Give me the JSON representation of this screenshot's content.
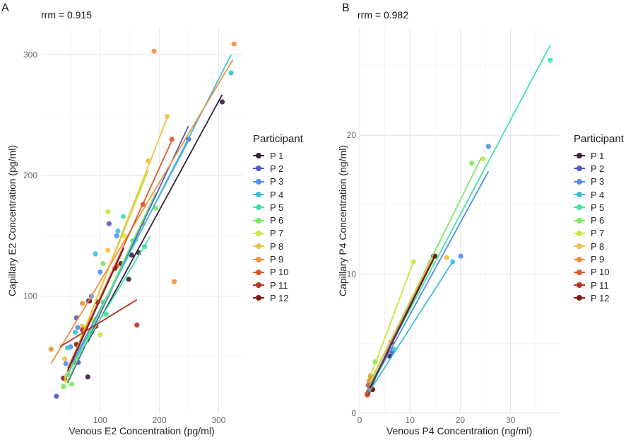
{
  "colors": [
    "#3b1f3f",
    "#5558c8",
    "#4f8ef0",
    "#3cc0dc",
    "#3de5a0",
    "#7be860",
    "#c5e83c",
    "#f0c040",
    "#f0903c",
    "#e0582a",
    "#b8341e",
    "#7a1a18"
  ],
  "legend": {
    "title": "Participant",
    "items": [
      "P 1",
      "P 2",
      "P 3",
      "P 4",
      "P 5",
      "P 6",
      "P 7",
      "P 8",
      "P 9",
      "P 10",
      "P 11",
      "P 12"
    ]
  },
  "chart_data": [
    {
      "type": "scatter",
      "panel": "A",
      "annotation": "rrm = 0.915",
      "xlabel": "Venous E2 Concentration (pg/ml)",
      "ylabel": "Capillary E2 Concentration (pg/ml)",
      "xlim": [
        0,
        340
      ],
      "ylim": [
        3,
        322
      ],
      "xticks": [
        100,
        200,
        300
      ],
      "yticks": [
        100,
        200,
        300
      ],
      "xminor": [
        50,
        150,
        250
      ],
      "yminor": [
        50,
        150,
        250
      ],
      "series": [
        {
          "name": "P 1",
          "points": [
            [
              79,
              33
            ],
            [
              306,
              261
            ],
            [
              148,
              114
            ],
            [
              153,
              134
            ],
            [
              165,
              136
            ],
            [
              135,
              127
            ],
            [
              38,
              32
            ]
          ],
          "line": [
            [
              79,
              62
            ],
            [
              306,
              267
            ]
          ]
        },
        {
          "name": "P 2",
          "points": [
            [
              26,
              17
            ],
            [
              249,
              230
            ],
            [
              63,
              45
            ],
            [
              115,
              160
            ],
            [
              60,
              82
            ],
            [
              80,
              96
            ]
          ],
          "line": [
            [
              45,
              28
            ],
            [
              249,
              241
            ]
          ]
        },
        {
          "name": "P 3",
          "points": [
            [
              100,
              120
            ],
            [
              62,
              74
            ],
            [
              50,
              58
            ],
            [
              42,
              44
            ],
            [
              85,
              100
            ],
            [
              128,
              150
            ]
          ],
          "line": [
            [
              40,
              33
            ],
            [
              250,
              230
            ]
          ]
        },
        {
          "name": "P 4",
          "points": [
            [
              92,
              135
            ],
            [
              321,
              285
            ],
            [
              55,
              45
            ],
            [
              58,
              70
            ],
            [
              45,
              57
            ],
            [
              130,
              154
            ]
          ],
          "line": [
            [
              40,
              30
            ],
            [
              321,
              300
            ]
          ]
        },
        {
          "name": "P 5",
          "points": [
            [
              139,
              166
            ],
            [
              175,
              141
            ],
            [
              155,
              146
            ],
            [
              105,
              95
            ],
            [
              110,
              85
            ],
            [
              45,
              35
            ]
          ],
          "line": [
            [
              40,
              32
            ],
            [
              185,
              150
            ]
          ]
        },
        {
          "name": "P 6",
          "points": [
            [
              194,
              173
            ],
            [
              105,
              127
            ],
            [
              52,
              27
            ],
            [
              38,
              25
            ],
            [
              90,
              80
            ],
            [
              160,
              147
            ]
          ],
          "line": [
            [
              45,
              30
            ],
            [
              194,
              186
            ]
          ]
        },
        {
          "name": "P 7",
          "points": [
            [
              113,
              170
            ],
            [
              100,
              68
            ],
            [
              42,
              30
            ],
            [
              140,
              150
            ],
            [
              85,
              80
            ]
          ],
          "line": [
            [
              40,
              32
            ],
            [
              181,
              204
            ]
          ]
        },
        {
          "name": "P 8",
          "points": [
            [
              213,
              249
            ],
            [
              181,
              212
            ],
            [
              113,
              138
            ],
            [
              40,
              48
            ],
            [
              70,
              75
            ]
          ],
          "line": [
            [
              40,
              30
            ],
            [
              214,
              249
            ]
          ]
        },
        {
          "name": "P 9",
          "points": [
            [
              191,
              303
            ],
            [
              326,
              309
            ],
            [
              225,
              112
            ],
            [
              17,
              56
            ],
            [
              70,
              94
            ],
            [
              172,
              160
            ],
            [
              95,
              95
            ]
          ],
          "line": [
            [
              17,
              44
            ],
            [
              324,
              296
            ]
          ]
        },
        {
          "name": "P 10",
          "points": [
            [
              221,
              230
            ],
            [
              172,
              176
            ],
            [
              55,
              46
            ],
            [
              72,
              72
            ],
            [
              128,
              125
            ]
          ],
          "line": [
            [
              45,
              40
            ],
            [
              223,
              231
            ]
          ]
        },
        {
          "name": "P 11",
          "points": [
            [
              162,
              76
            ],
            [
              93,
              75
            ],
            [
              40,
              32
            ],
            [
              70,
              72
            ]
          ],
          "line": [
            [
              32,
              58
            ],
            [
              162,
              97
            ]
          ]
        },
        {
          "name": "P 12",
          "points": [
            [
              82,
              96
            ],
            [
              125,
              123
            ],
            [
              85,
              70
            ],
            [
              60,
              60
            ],
            [
              95,
              95
            ]
          ],
          "line": [
            [
              45,
              38
            ],
            [
              140,
              140
            ]
          ]
        }
      ]
    },
    {
      "type": "scatter",
      "panel": "B",
      "annotation": "rrm = 0.982",
      "xlabel": "Venous P4 Concentration (ng/ml)",
      "ylabel": "Capillary P4 Concentration (ng/ml)",
      "xlim": [
        0,
        39.6
      ],
      "ylim": [
        0,
        27.7
      ],
      "xticks": [
        0,
        10,
        20,
        30
      ],
      "yticks": [
        0,
        10,
        20
      ],
      "xminor": [
        5,
        15,
        25,
        35
      ],
      "yminor": [
        5,
        15,
        25
      ],
      "series": [
        {
          "name": "P 1",
          "points": [
            [
              14.7,
              11.3
            ],
            [
              6,
              4.1
            ],
            [
              2.5,
              1.7
            ]
          ],
          "line": [
            [
              2.2,
              1.8
            ],
            [
              14.7,
              11.3
            ]
          ]
        },
        {
          "name": "P 2",
          "points": [
            [
              1.7,
              1.5
            ],
            [
              6.5,
              4.4
            ]
          ],
          "line": [
            [
              2,
              1.8
            ],
            [
              14,
              11
            ]
          ]
        },
        {
          "name": "P 3",
          "points": [
            [
              25.6,
              19.2
            ],
            [
              20.1,
              11.3
            ],
            [
              1.7,
              2.0
            ]
          ],
          "line": [
            [
              2,
              1.8
            ],
            [
              25.6,
              17.4
            ]
          ]
        },
        {
          "name": "P 4",
          "points": [
            [
              18.5,
              10.9
            ],
            [
              1.8,
              1.6
            ],
            [
              6.8,
              4.6
            ]
          ],
          "line": [
            [
              2,
              1.6
            ],
            [
              18.5,
              10.9
            ]
          ]
        },
        {
          "name": "P 5",
          "points": [
            [
              37.9,
              25.4
            ],
            [
              14.2,
              10.9
            ],
            [
              2,
              2.3
            ]
          ],
          "line": [
            [
              2,
              2
            ],
            [
              37.9,
              26.5
            ]
          ]
        },
        {
          "name": "P 6",
          "points": [
            [
              22.3,
              18.0
            ],
            [
              3.1,
              3.7
            ],
            [
              2.1,
              2.6
            ]
          ],
          "line": [
            [
              2,
              2.2
            ],
            [
              24.2,
              18.4
            ]
          ]
        },
        {
          "name": "P 7",
          "points": [
            [
              24.5,
              18.3
            ],
            [
              10.7,
              10.9
            ],
            [
              2.2,
              2.5
            ]
          ],
          "line": [
            [
              2,
              2.5
            ],
            [
              10.7,
              10.9
            ]
          ]
        },
        {
          "name": "P 8",
          "points": [
            [
              17.3,
              11.2
            ],
            [
              2.1,
              2.4
            ]
          ],
          "line": [
            [
              2,
              2.2
            ],
            [
              14.5,
              11.2
            ]
          ]
        },
        {
          "name": "P 9",
          "points": [
            [
              2.2,
              2.7
            ],
            [
              1.9,
              2.3
            ]
          ],
          "line": [
            [
              1.9,
              2.3
            ],
            [
              2.2,
              2.7
            ]
          ]
        },
        {
          "name": "P 10",
          "points": [
            [
              1.5,
              1.3
            ],
            [
              1.8,
              2.0
            ]
          ],
          "line": [
            [
              1.5,
              1.3
            ],
            [
              1.8,
              2.0
            ]
          ]
        },
        {
          "name": "P 11",
          "points": [
            [
              1.6,
              1.4
            ]
          ],
          "line": null
        },
        {
          "name": "P 12",
          "points": [
            [
              6.3,
              5.1
            ],
            [
              2.6,
              1.7
            ],
            [
              15,
              11.3
            ]
          ],
          "line": [
            [
              2,
              1.8
            ],
            [
              15,
              11.3
            ]
          ]
        }
      ]
    }
  ],
  "panel_labels": [
    "A",
    "B"
  ]
}
